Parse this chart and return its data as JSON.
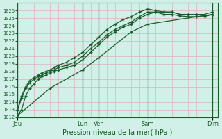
{
  "bg_color": "#d0f0e8",
  "grid_color": "#c8e8d8",
  "line_color": "#1a5c2a",
  "ylim": [
    1012,
    1027
  ],
  "yticks": [
    1012,
    1013,
    1014,
    1015,
    1016,
    1017,
    1018,
    1019,
    1020,
    1021,
    1022,
    1023,
    1024,
    1025,
    1026
  ],
  "xlabel": "Pression niveau de la mer( hPa )",
  "xtick_labels": [
    "Jeu",
    "Lun",
    "Ven",
    "Sam",
    "Dim"
  ],
  "xtick_positions": [
    0,
    96,
    120,
    192,
    288
  ],
  "x_vlines": [
    0,
    96,
    120,
    192,
    288
  ],
  "xlim": [
    0,
    296
  ],
  "series": {
    "s1_x": [
      0,
      6,
      12,
      18,
      24,
      30,
      36,
      42,
      48,
      54,
      60,
      72,
      84,
      96,
      108,
      120,
      132,
      144,
      156,
      168,
      180,
      192,
      204,
      216,
      228,
      240,
      252,
      264,
      276,
      288
    ],
    "s1_y": [
      1012.2,
      1013.0,
      1014.8,
      1015.8,
      1016.3,
      1017.0,
      1017.3,
      1017.5,
      1017.8,
      1018.0,
      1018.2,
      1018.5,
      1018.8,
      1019.5,
      1020.5,
      1021.5,
      1022.5,
      1023.2,
      1023.8,
      1024.2,
      1025.0,
      1025.5,
      1025.8,
      1025.8,
      1025.8,
      1025.5,
      1025.5,
      1025.5,
      1025.5,
      1025.8
    ],
    "s2_x": [
      0,
      6,
      12,
      18,
      24,
      30,
      36,
      42,
      48,
      54,
      60,
      72,
      84,
      96,
      108,
      120,
      132,
      144,
      156,
      168,
      180,
      192,
      204,
      216,
      228,
      240,
      252,
      264,
      276,
      288
    ],
    "s2_y": [
      1013.0,
      1014.8,
      1016.0,
      1016.8,
      1017.2,
      1017.5,
      1017.8,
      1018.0,
      1018.2,
      1018.5,
      1018.8,
      1019.2,
      1019.8,
      1020.5,
      1021.5,
      1022.5,
      1023.5,
      1024.2,
      1024.8,
      1025.2,
      1025.8,
      1026.2,
      1026.0,
      1025.8,
      1025.8,
      1025.5,
      1025.5,
      1025.5,
      1025.3,
      1025.5
    ],
    "s3_x": [
      0,
      6,
      12,
      18,
      24,
      30,
      36,
      42,
      48,
      54,
      60,
      72,
      84,
      96,
      108,
      120,
      132,
      144,
      156,
      168,
      180,
      192,
      204,
      216,
      228,
      240,
      252,
      264,
      276,
      288
    ],
    "s3_y": [
      1013.0,
      1014.5,
      1015.8,
      1016.5,
      1017.0,
      1017.3,
      1017.5,
      1017.8,
      1018.0,
      1018.2,
      1018.5,
      1018.8,
      1019.2,
      1020.0,
      1021.0,
      1021.8,
      1022.8,
      1023.5,
      1024.0,
      1024.5,
      1025.2,
      1025.8,
      1025.8,
      1025.5,
      1025.5,
      1025.3,
      1025.2,
      1025.2,
      1025.2,
      1025.5
    ],
    "s4_x": [
      0,
      48,
      96,
      120,
      168,
      192,
      288
    ],
    "s4_y": [
      1012.2,
      1015.8,
      1018.2,
      1019.8,
      1023.2,
      1024.2,
      1025.5
    ]
  }
}
